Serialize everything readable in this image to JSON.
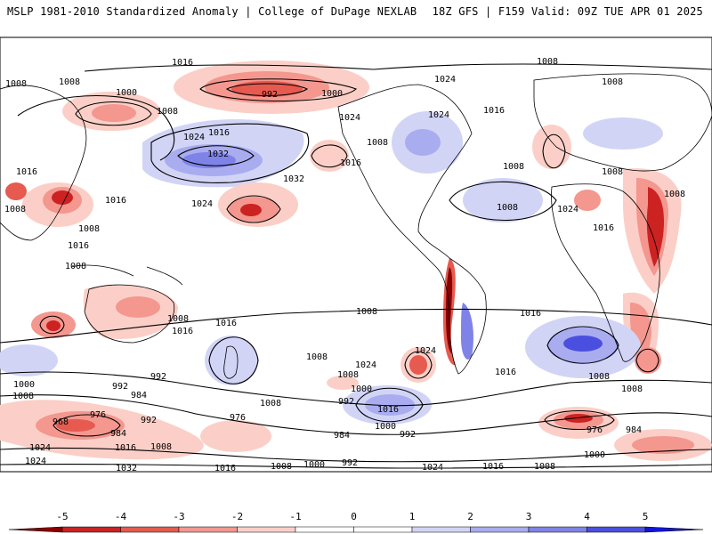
{
  "header": {
    "left_title": "MSLP 1981-2010 Standardized Anomaly | College of DuPage NEXLAB",
    "right_title": "18Z GFS | F159 Valid: 09Z TUE APR 01 2025"
  },
  "colors": {
    "neg5": "#8b0000",
    "neg4": "#cc2222",
    "neg3": "#e65a4f",
    "neg2": "#f3978f",
    "neg1": "#fbcfc7",
    "pos1": "#d2d4f6",
    "pos2": "#a9acef",
    "pos3": "#7f83e8",
    "pos4": "#4b4fe0",
    "pos5": "#1416d4",
    "contour": "#000000",
    "coast": "#000000"
  },
  "colorbar": {
    "ticks": [
      "-5",
      "-4",
      "-3",
      "-2",
      "-1",
      "0",
      "1",
      "2",
      "3",
      "4",
      "5"
    ]
  },
  "isobar_labels": [
    "1008",
    "1016",
    "1008",
    "1000",
    "1008",
    "992",
    "1000",
    "1024",
    "1016",
    "1024",
    "1032",
    "1024",
    "1016",
    "1008",
    "1016",
    "1008",
    "1024",
    "1008",
    "1008",
    "1008",
    "1016",
    "1024",
    "1032",
    "1016",
    "1008",
    "1008",
    "1016",
    "1008",
    "1008",
    "1024",
    "1016",
    "1008",
    "1008",
    "1016",
    "1016",
    "1008",
    "1008",
    "1024",
    "1024",
    "1000",
    "992",
    "984",
    "992",
    "1008",
    "1000",
    "992",
    "1016",
    "1000",
    "1008",
    "1008",
    "968",
    "976",
    "984",
    "992",
    "976",
    "1024",
    "1016",
    "1008",
    "984",
    "992",
    "1000",
    "1008",
    "976",
    "984",
    "1024",
    "1032",
    "1016",
    "1008",
    "1000",
    "992",
    "1024",
    "1016",
    "1008",
    "1016",
    "1016",
    "1008"
  ]
}
